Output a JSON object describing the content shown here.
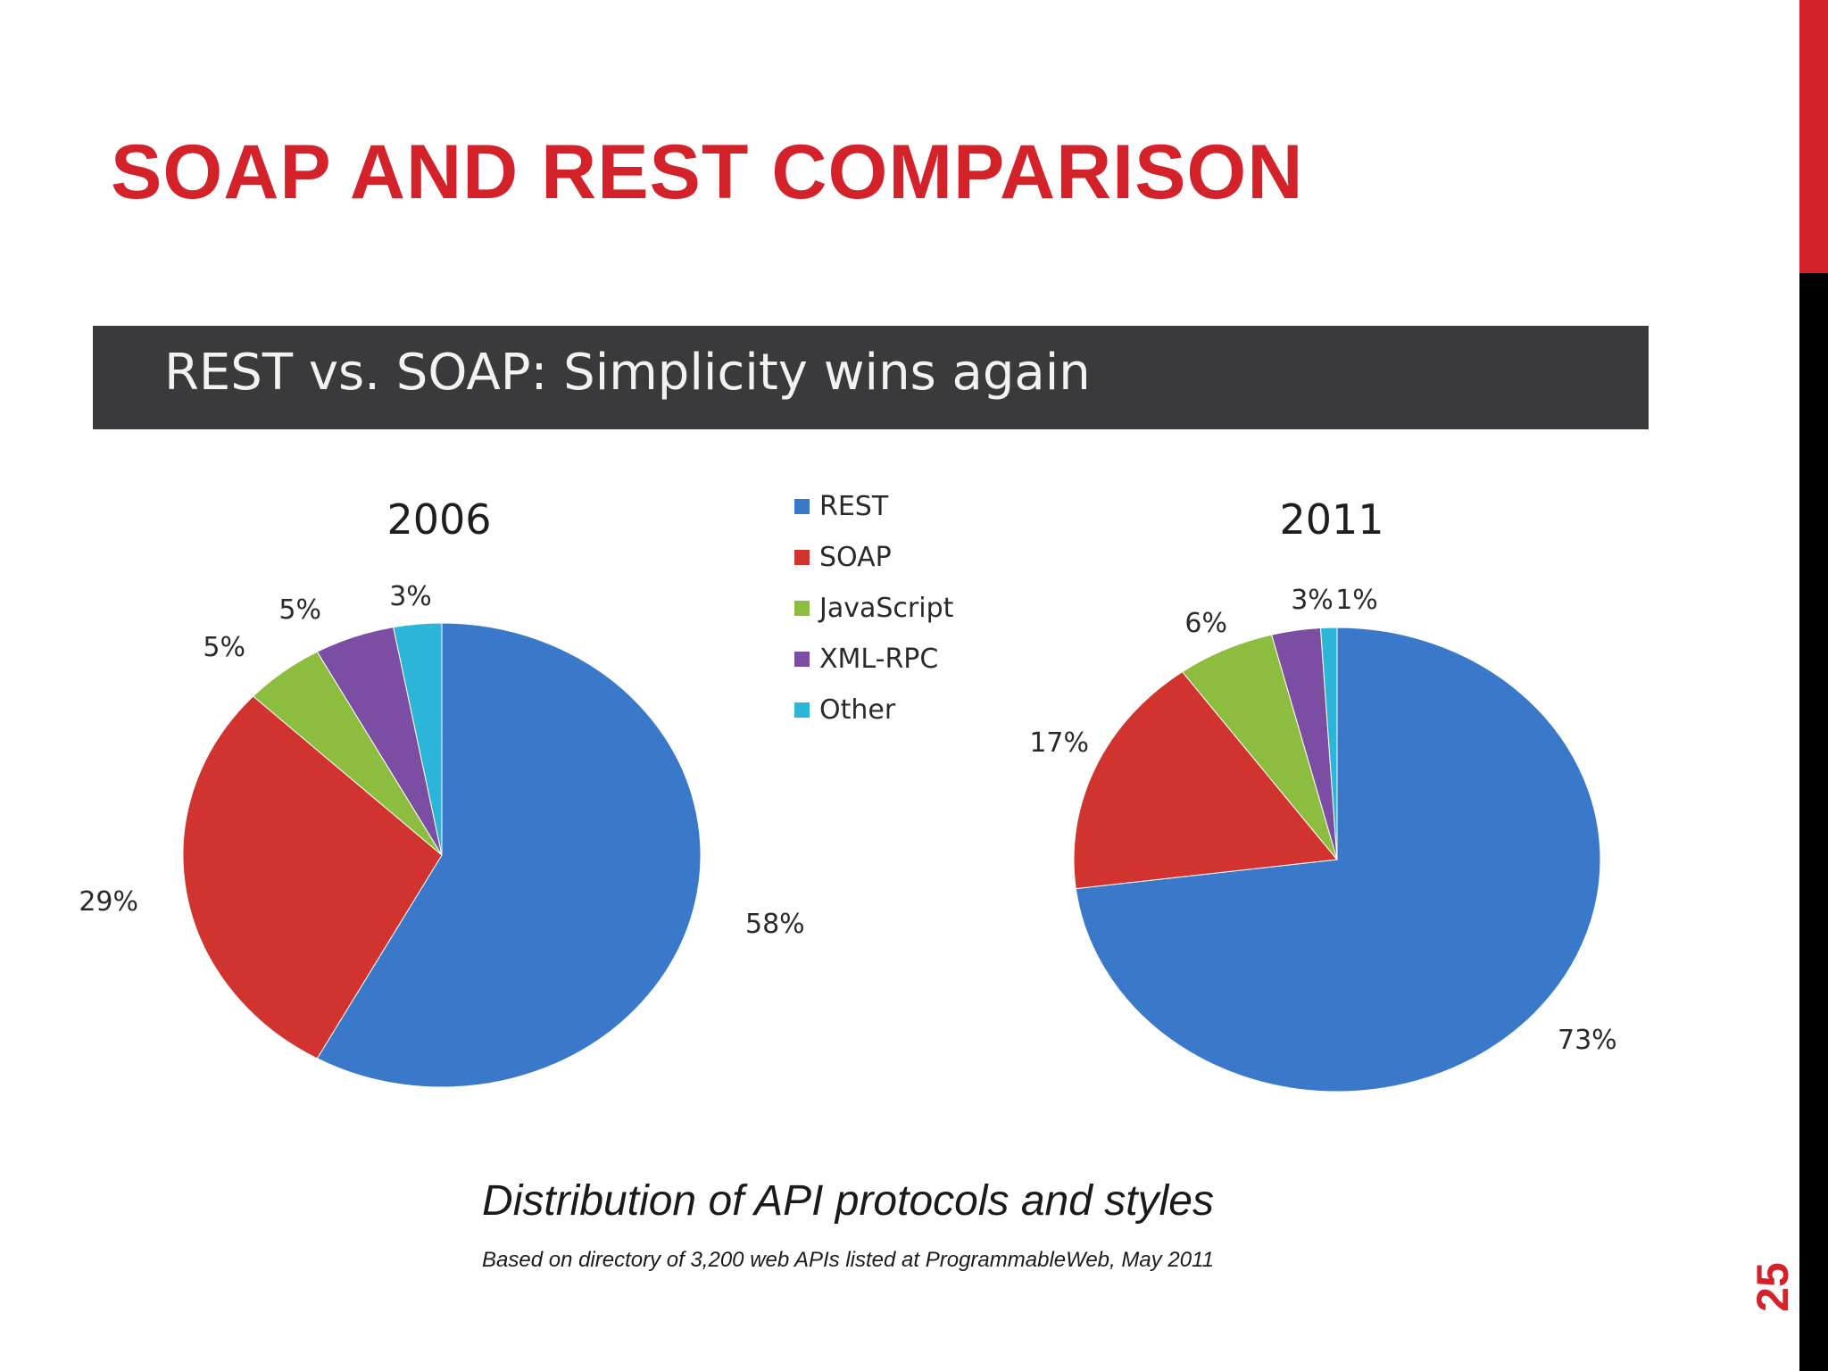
{
  "slide": {
    "title": "SOAP AND REST COMPARISON",
    "page_number": "25",
    "accent_color": "#d3222a",
    "side_bar_colors": [
      "#d3222a",
      "#000000"
    ]
  },
  "figure": {
    "banner": "REST vs. SOAP: Simplicity wins again",
    "banner_color": "#3a3a3c",
    "caption": "Distribution of API protocols and styles",
    "source": "Based on directory of 3,200 web APIs listed at ProgrammableWeb, May 2011"
  },
  "chart_data": [
    {
      "type": "pie",
      "title": "2006",
      "categories": [
        "REST",
        "SOAP",
        "JavaScript",
        "XML-RPC",
        "Other"
      ],
      "values": [
        58,
        29,
        5,
        5,
        3
      ],
      "labels": [
        "58%",
        "29%",
        "5%",
        "5%",
        "3%"
      ],
      "colors": [
        "#3a78c9",
        "#d1332e",
        "#8cbd3f",
        "#7b4ea3",
        "#2bb5d8"
      ],
      "legend": "between pies, top"
    },
    {
      "type": "pie",
      "title": "2011",
      "categories": [
        "REST",
        "SOAP",
        "JavaScript",
        "XML-RPC",
        "Other"
      ],
      "values": [
        73,
        17,
        6,
        3,
        1
      ],
      "labels": [
        "73%",
        "17%",
        "6%",
        "3%",
        "1%"
      ],
      "colors": [
        "#3a78c9",
        "#d1332e",
        "#8cbd3f",
        "#7b4ea3",
        "#2bb5d8"
      ],
      "legend": "between pies, top"
    }
  ]
}
